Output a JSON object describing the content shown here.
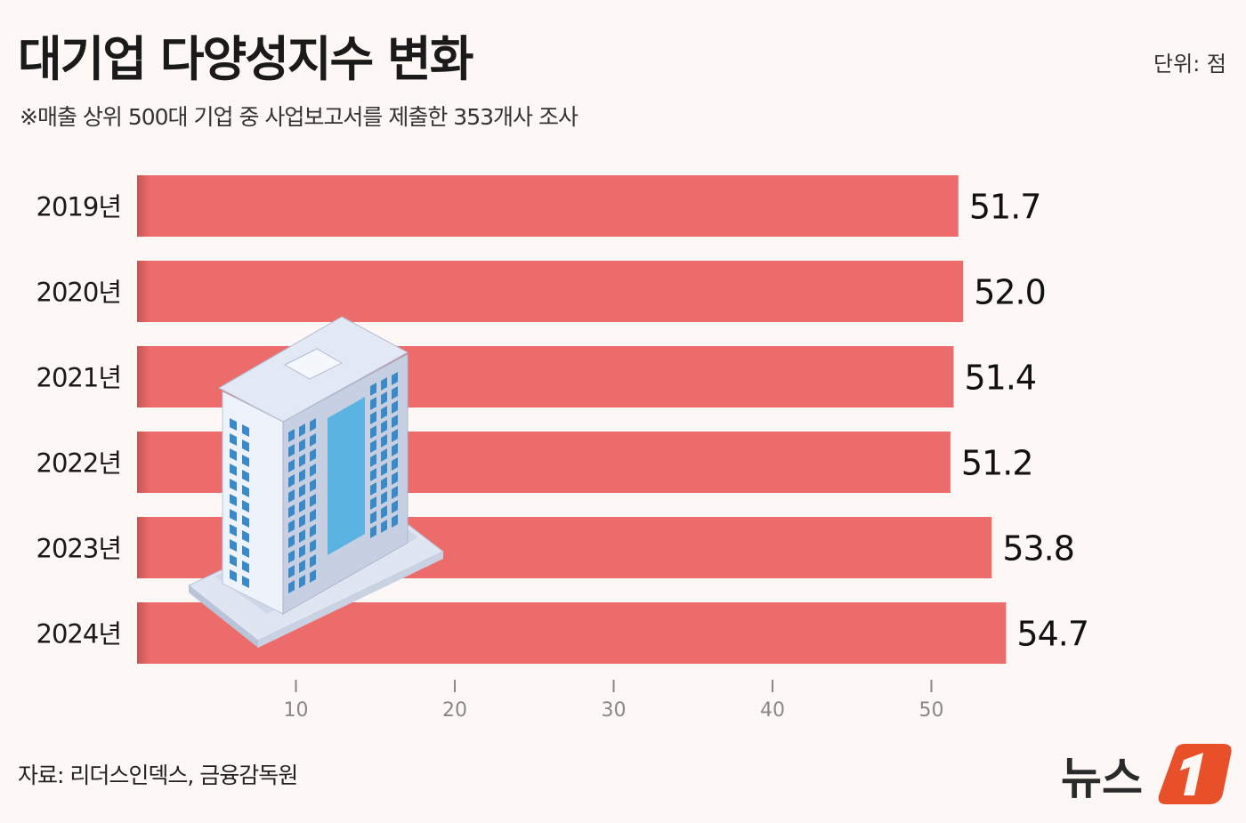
{
  "title": "대기업 다양성지수 변화",
  "unit": "단위: 점",
  "subtitle": "※매출 상위 500대 기업 중 사업보고서를 제출한 353개사 조사",
  "source": "자료: 리더스인덱스, 금융감독원",
  "logo_text": "뉴스1",
  "colors": {
    "bar": "#ec6b6b",
    "background": "#fdf7f6",
    "logo_accent": "#e8502a"
  },
  "chart_data": {
    "type": "bar",
    "orientation": "horizontal",
    "categories": [
      "2019년",
      "2020년",
      "2021년",
      "2022년",
      "2023년",
      "2024년"
    ],
    "values": [
      51.7,
      52.0,
      51.4,
      51.2,
      53.8,
      54.7
    ],
    "value_labels": [
      "51.7",
      "52.0",
      "51.4",
      "51.2",
      "53.8",
      "54.7"
    ],
    "xticks": [
      10,
      20,
      30,
      40,
      50
    ],
    "xlim": [
      0,
      60
    ],
    "grid": false,
    "title": "대기업 다양성지수 변화"
  }
}
